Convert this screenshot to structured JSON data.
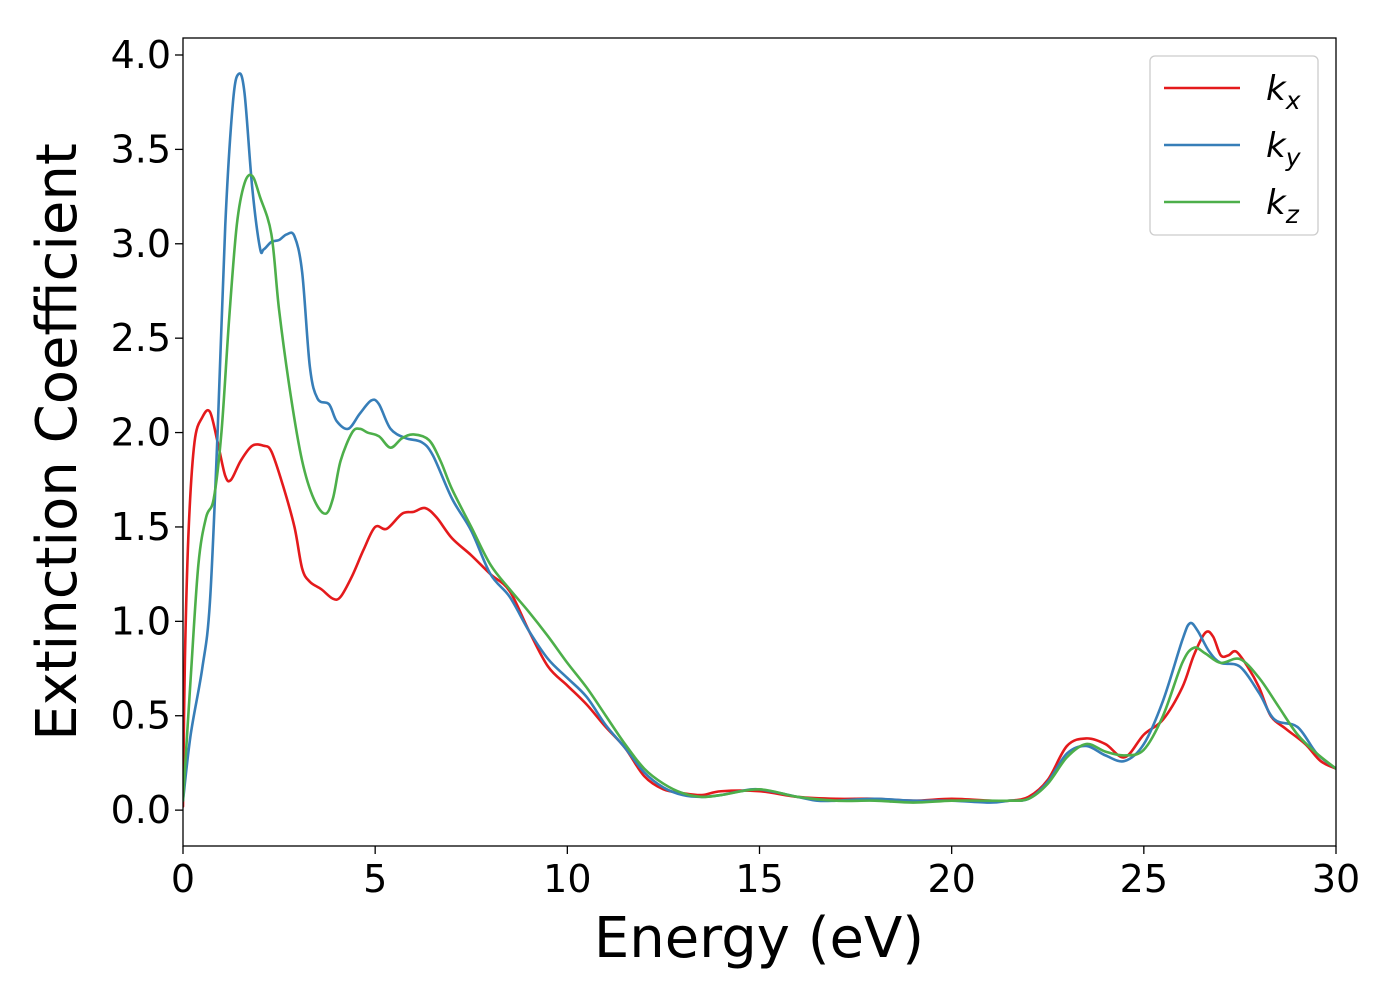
{
  "chart_data": {
    "type": "line",
    "title": "",
    "xlabel": "Energy (eV)",
    "ylabel": "Extinction Coefficient",
    "xlim": [
      0,
      30
    ],
    "ylim": [
      -0.19,
      4.09
    ],
    "xticks": [
      0,
      5,
      10,
      15,
      20,
      25,
      30
    ],
    "xtick_labels": [
      "0",
      "5",
      "10",
      "15",
      "20",
      "25",
      "30"
    ],
    "yticks": [
      0.0,
      0.5,
      1.0,
      1.5,
      2.0,
      2.5,
      3.0,
      3.5,
      4.0
    ],
    "ytick_labels": [
      "0.0",
      "0.5",
      "1.0",
      "1.5",
      "2.0",
      "2.5",
      "3.0",
      "3.5",
      "4.0"
    ],
    "grid": false,
    "legend_position": "top-right",
    "series": [
      {
        "name": "k",
        "subscript": "x",
        "color": "#e41a1c",
        "points": [
          [
            0,
            0.02
          ],
          [
            0.05,
            0.8
          ],
          [
            0.15,
            1.5
          ],
          [
            0.3,
            1.95
          ],
          [
            0.5,
            2.08
          ],
          [
            0.7,
            2.11
          ],
          [
            0.9,
            1.95
          ],
          [
            1.1,
            1.77
          ],
          [
            1.25,
            1.75
          ],
          [
            1.5,
            1.85
          ],
          [
            1.8,
            1.93
          ],
          [
            2.1,
            1.93
          ],
          [
            2.3,
            1.9
          ],
          [
            2.6,
            1.72
          ],
          [
            2.9,
            1.5
          ],
          [
            3.1,
            1.28
          ],
          [
            3.3,
            1.21
          ],
          [
            3.6,
            1.17
          ],
          [
            3.9,
            1.12
          ],
          [
            4.1,
            1.13
          ],
          [
            4.4,
            1.24
          ],
          [
            4.7,
            1.38
          ],
          [
            5.0,
            1.5
          ],
          [
            5.3,
            1.49
          ],
          [
            5.7,
            1.57
          ],
          [
            6.0,
            1.58
          ],
          [
            6.3,
            1.6
          ],
          [
            6.6,
            1.55
          ],
          [
            7.0,
            1.44
          ],
          [
            7.5,
            1.35
          ],
          [
            8.0,
            1.25
          ],
          [
            8.5,
            1.16
          ],
          [
            9.0,
            0.95
          ],
          [
            9.5,
            0.76
          ],
          [
            10.0,
            0.66
          ],
          [
            10.5,
            0.56
          ],
          [
            11.0,
            0.44
          ],
          [
            11.5,
            0.33
          ],
          [
            12.0,
            0.18
          ],
          [
            12.5,
            0.11
          ],
          [
            13.0,
            0.09
          ],
          [
            13.5,
            0.08
          ],
          [
            14.0,
            0.1
          ],
          [
            15.0,
            0.1
          ],
          [
            16.0,
            0.07
          ],
          [
            17.0,
            0.06
          ],
          [
            18.0,
            0.06
          ],
          [
            19.0,
            0.05
          ],
          [
            20.0,
            0.06
          ],
          [
            21.0,
            0.05
          ],
          [
            21.5,
            0.05
          ],
          [
            22.0,
            0.07
          ],
          [
            22.5,
            0.16
          ],
          [
            23.0,
            0.34
          ],
          [
            23.5,
            0.38
          ],
          [
            24.0,
            0.35
          ],
          [
            24.5,
            0.28
          ],
          [
            25.0,
            0.4
          ],
          [
            25.5,
            0.48
          ],
          [
            26.0,
            0.65
          ],
          [
            26.3,
            0.82
          ],
          [
            26.6,
            0.94
          ],
          [
            26.8,
            0.92
          ],
          [
            27.0,
            0.82
          ],
          [
            27.2,
            0.82
          ],
          [
            27.4,
            0.84
          ],
          [
            27.7,
            0.76
          ],
          [
            28.0,
            0.65
          ],
          [
            28.3,
            0.5
          ],
          [
            28.7,
            0.43
          ],
          [
            29.2,
            0.35
          ],
          [
            29.6,
            0.26
          ],
          [
            30.0,
            0.22
          ]
        ]
      },
      {
        "name": "k",
        "subscript": "y",
        "color": "#377eb8",
        "points": [
          [
            0,
            0.05
          ],
          [
            0.2,
            0.4
          ],
          [
            0.5,
            0.75
          ],
          [
            0.7,
            1.1
          ],
          [
            0.9,
            2.0
          ],
          [
            1.1,
            3.1
          ],
          [
            1.3,
            3.75
          ],
          [
            1.45,
            3.9
          ],
          [
            1.6,
            3.8
          ],
          [
            1.8,
            3.3
          ],
          [
            2.0,
            2.98
          ],
          [
            2.1,
            2.97
          ],
          [
            2.3,
            3.01
          ],
          [
            2.5,
            3.02
          ],
          [
            2.7,
            3.05
          ],
          [
            2.9,
            3.04
          ],
          [
            3.1,
            2.85
          ],
          [
            3.3,
            2.35
          ],
          [
            3.5,
            2.18
          ],
          [
            3.8,
            2.15
          ],
          [
            4.0,
            2.06
          ],
          [
            4.3,
            2.02
          ],
          [
            4.6,
            2.1
          ],
          [
            4.9,
            2.17
          ],
          [
            5.1,
            2.15
          ],
          [
            5.4,
            2.02
          ],
          [
            5.8,
            1.97
          ],
          [
            6.2,
            1.95
          ],
          [
            6.5,
            1.88
          ],
          [
            7.0,
            1.65
          ],
          [
            7.5,
            1.48
          ],
          [
            8.0,
            1.25
          ],
          [
            8.5,
            1.13
          ],
          [
            9.0,
            0.95
          ],
          [
            9.5,
            0.8
          ],
          [
            10.0,
            0.7
          ],
          [
            10.5,
            0.6
          ],
          [
            11.0,
            0.45
          ],
          [
            11.5,
            0.33
          ],
          [
            12.0,
            0.2
          ],
          [
            12.5,
            0.12
          ],
          [
            13.0,
            0.08
          ],
          [
            13.5,
            0.07
          ],
          [
            14.0,
            0.08
          ],
          [
            14.5,
            0.1
          ],
          [
            15.0,
            0.11
          ],
          [
            16.0,
            0.07
          ],
          [
            16.5,
            0.05
          ],
          [
            17.0,
            0.05
          ],
          [
            18.0,
            0.06
          ],
          [
            19.0,
            0.05
          ],
          [
            20.0,
            0.05
          ],
          [
            21.0,
            0.04
          ],
          [
            21.5,
            0.05
          ],
          [
            22.0,
            0.06
          ],
          [
            22.5,
            0.15
          ],
          [
            23.0,
            0.3
          ],
          [
            23.5,
            0.34
          ],
          [
            24.0,
            0.29
          ],
          [
            24.5,
            0.26
          ],
          [
            25.0,
            0.35
          ],
          [
            25.5,
            0.58
          ],
          [
            26.0,
            0.9
          ],
          [
            26.2,
            0.99
          ],
          [
            26.4,
            0.95
          ],
          [
            26.7,
            0.84
          ],
          [
            27.0,
            0.78
          ],
          [
            27.5,
            0.76
          ],
          [
            28.0,
            0.62
          ],
          [
            28.4,
            0.48
          ],
          [
            29.0,
            0.44
          ],
          [
            29.5,
            0.3
          ],
          [
            30.0,
            0.22
          ]
        ]
      },
      {
        "name": "k",
        "subscript": "z",
        "color": "#4daf4a",
        "points": [
          [
            0,
            0.05
          ],
          [
            0.2,
            0.7
          ],
          [
            0.4,
            1.3
          ],
          [
            0.6,
            1.55
          ],
          [
            0.8,
            1.65
          ],
          [
            1.0,
            2.0
          ],
          [
            1.2,
            2.6
          ],
          [
            1.4,
            3.1
          ],
          [
            1.6,
            3.32
          ],
          [
            1.8,
            3.36
          ],
          [
            2.0,
            3.25
          ],
          [
            2.3,
            3.05
          ],
          [
            2.5,
            2.65
          ],
          [
            2.8,
            2.2
          ],
          [
            3.1,
            1.85
          ],
          [
            3.4,
            1.65
          ],
          [
            3.7,
            1.57
          ],
          [
            3.9,
            1.65
          ],
          [
            4.1,
            1.85
          ],
          [
            4.4,
            2.0
          ],
          [
            4.6,
            2.02
          ],
          [
            4.8,
            2.0
          ],
          [
            5.1,
            1.98
          ],
          [
            5.4,
            1.92
          ],
          [
            5.7,
            1.97
          ],
          [
            6.0,
            1.99
          ],
          [
            6.4,
            1.96
          ],
          [
            6.7,
            1.85
          ],
          [
            7.0,
            1.7
          ],
          [
            7.5,
            1.5
          ],
          [
            8.0,
            1.3
          ],
          [
            8.5,
            1.17
          ],
          [
            9.0,
            1.05
          ],
          [
            9.5,
            0.92
          ],
          [
            10.0,
            0.78
          ],
          [
            10.5,
            0.65
          ],
          [
            11.0,
            0.5
          ],
          [
            11.5,
            0.35
          ],
          [
            12.0,
            0.22
          ],
          [
            12.5,
            0.14
          ],
          [
            13.0,
            0.09
          ],
          [
            13.5,
            0.07
          ],
          [
            14.0,
            0.08
          ],
          [
            15.0,
            0.11
          ],
          [
            16.0,
            0.07
          ],
          [
            17.0,
            0.05
          ],
          [
            18.0,
            0.05
          ],
          [
            19.0,
            0.04
          ],
          [
            20.0,
            0.05
          ],
          [
            21.0,
            0.05
          ],
          [
            21.5,
            0.05
          ],
          [
            22.0,
            0.06
          ],
          [
            22.5,
            0.14
          ],
          [
            23.0,
            0.28
          ],
          [
            23.5,
            0.35
          ],
          [
            24.0,
            0.31
          ],
          [
            24.5,
            0.29
          ],
          [
            25.0,
            0.32
          ],
          [
            25.5,
            0.5
          ],
          [
            26.0,
            0.78
          ],
          [
            26.3,
            0.86
          ],
          [
            26.6,
            0.83
          ],
          [
            27.0,
            0.78
          ],
          [
            27.5,
            0.8
          ],
          [
            28.0,
            0.7
          ],
          [
            28.5,
            0.55
          ],
          [
            29.0,
            0.4
          ],
          [
            29.5,
            0.3
          ],
          [
            30.0,
            0.22
          ]
        ]
      }
    ]
  }
}
